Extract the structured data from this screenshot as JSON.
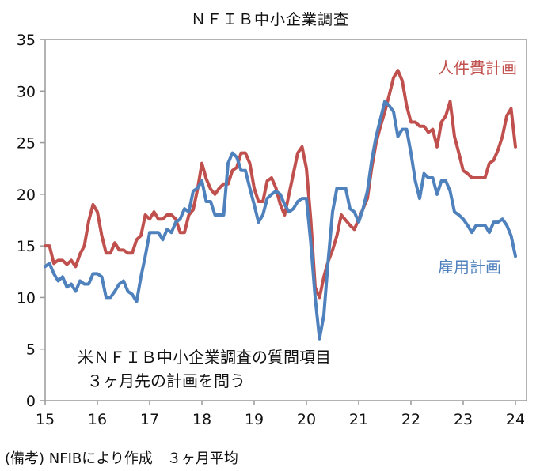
{
  "chart_data": {
    "type": "line",
    "title": "ＮＦＩＢ中小企業調査",
    "xlabel": "",
    "ylabel": "",
    "ylim": [
      0,
      35
    ],
    "yticks": [
      "0",
      "5",
      "10",
      "15",
      "20",
      "25",
      "30",
      "35"
    ],
    "xticks": [
      "15",
      "16",
      "17",
      "18",
      "19",
      "20",
      "21",
      "22",
      "23",
      "24"
    ],
    "x_start": "2015-01",
    "frequency": "monthly",
    "grid": false,
    "series": [
      {
        "name": "人件費計画",
        "color": "#C0504D",
        "values": [
          15,
          15,
          13.3,
          13.6,
          13.6,
          13.2,
          13.6,
          13,
          14.2,
          15,
          17.4,
          19,
          18.3,
          16,
          14.3,
          14.3,
          15.3,
          14.6,
          14.6,
          14.3,
          14.3,
          15.6,
          16,
          18,
          17.6,
          18.3,
          17.6,
          17.6,
          18,
          18,
          17.6,
          16.3,
          16.3,
          18,
          18.5,
          20.5,
          23,
          21.5,
          20.5,
          20,
          20.6,
          21,
          21,
          22.3,
          22.6,
          24,
          24,
          23,
          20.6,
          19.3,
          19.3,
          21.3,
          21.6,
          20.6,
          19,
          18,
          20,
          22,
          24,
          24.6,
          22.5,
          17.5,
          11,
          10,
          12,
          13.5,
          14.6,
          16,
          18,
          17.5,
          17,
          16.6,
          17.6,
          18.6,
          19.6,
          22.6,
          25,
          26.6,
          28,
          29.6,
          31.3,
          32,
          31,
          28.6,
          27,
          27,
          26.6,
          26.6,
          26,
          26.3,
          24.6,
          27,
          27.6,
          29,
          25.6,
          24,
          22.3,
          22,
          21.6,
          21.6,
          21.6,
          21.6,
          23,
          23.3,
          24.3,
          25.6,
          27.6,
          28.3,
          24.6
        ]
      },
      {
        "name": "雇用計画",
        "color": "#4F81BD",
        "values": [
          13,
          13.3,
          12.3,
          11.6,
          12,
          11,
          11.3,
          10.6,
          11.6,
          11.3,
          11.3,
          12.3,
          12.3,
          12,
          10,
          10,
          10.6,
          11.3,
          11.6,
          10.6,
          10.3,
          9.6,
          12,
          14,
          16.3,
          16.3,
          16.3,
          15.6,
          16.6,
          16.3,
          17.3,
          17.6,
          18.6,
          18.3,
          20.3,
          20.6,
          21.3,
          19.3,
          19.3,
          18,
          18,
          18,
          23,
          24,
          23.6,
          22.3,
          22.3,
          20.6,
          19,
          17.3,
          18,
          19.6,
          20,
          20.3,
          20,
          19,
          18.3,
          18.6,
          19.3,
          19.6,
          19.6,
          15.3,
          10,
          6,
          8.3,
          13.6,
          18.3,
          20.6,
          20.6,
          20.6,
          18.6,
          18.3,
          17.3,
          18.6,
          20.3,
          23.3,
          25.6,
          27.3,
          29,
          28.6,
          28,
          25.6,
          26.3,
          26.3,
          24,
          21.3,
          19.6,
          22,
          21.6,
          21.6,
          20,
          21.3,
          21.3,
          20.3,
          18.3,
          18,
          17.6,
          17,
          16.3,
          17,
          17,
          17,
          16.3,
          17.3,
          17.3,
          17.6,
          17,
          16,
          14
        ]
      }
    ],
    "annotations": [
      "米ＮＦＩＢ中小企業調査の質問項目",
      "３ヶ月先の計画を問う"
    ]
  },
  "footer": "(備考) NFIBにより作成　３ヶ月平均"
}
